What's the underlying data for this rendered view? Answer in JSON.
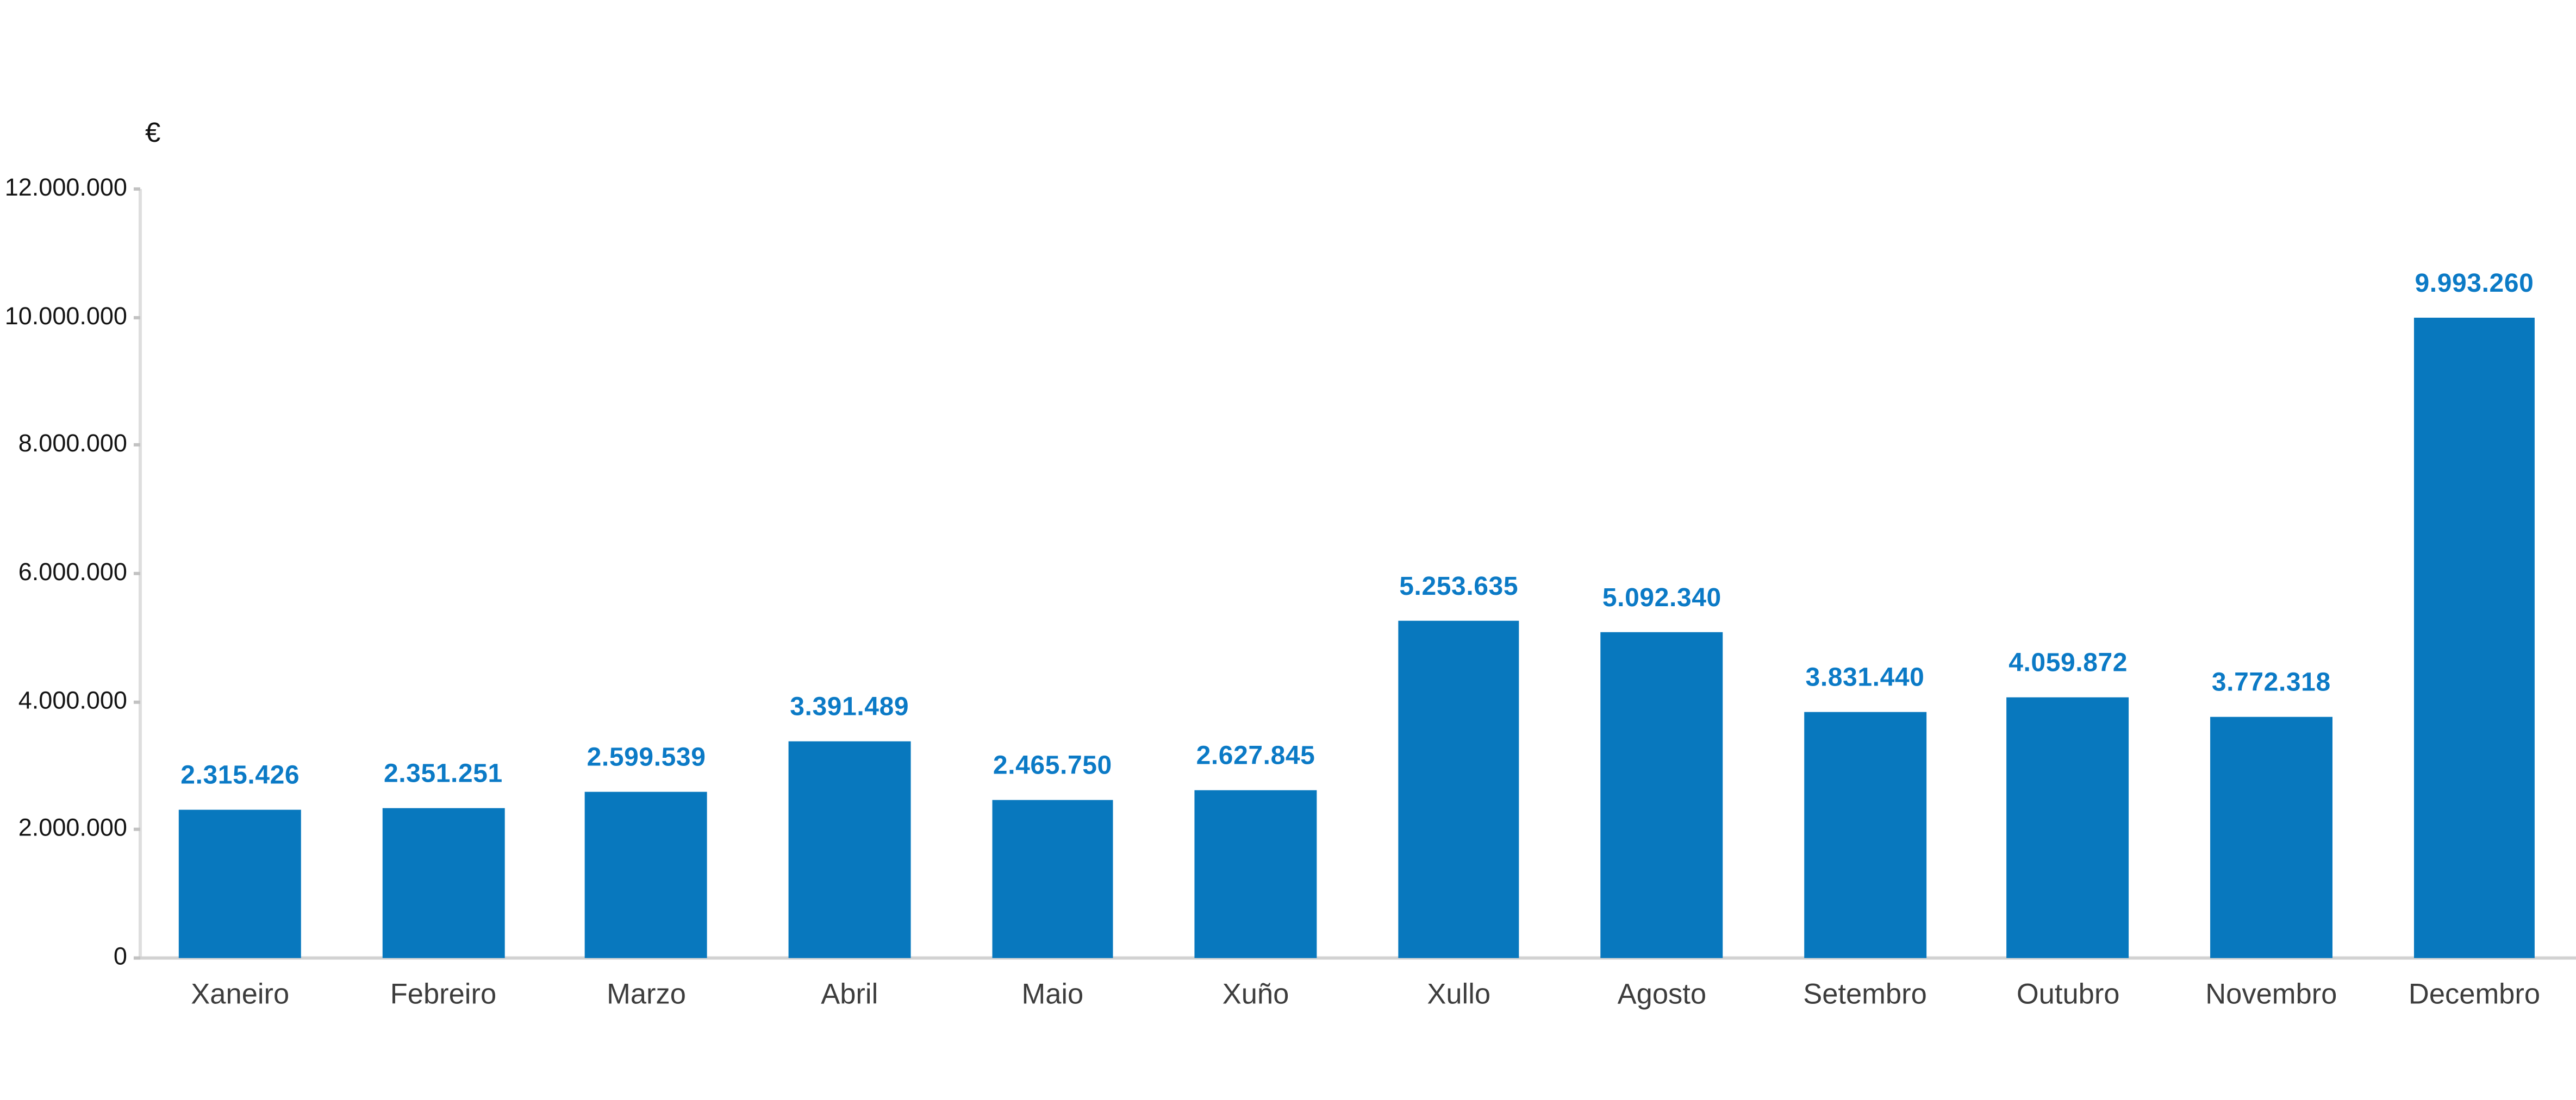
{
  "chart_data": {
    "type": "bar",
    "unit": "€",
    "categories": [
      "Xaneiro",
      "Febreiro",
      "Marzo",
      "Abril",
      "Maio",
      "Xuño",
      "Xullo",
      "Agosto",
      "Setembro",
      "Outubro",
      "Novembro",
      "Decembro"
    ],
    "values": [
      2315426,
      2351251,
      2599539,
      3391489,
      2465750,
      2627845,
      5253635,
      5092340,
      3831440,
      4059872,
      3772318,
      9993260
    ],
    "value_labels": [
      "2.315.426",
      "2.351.251",
      "2.599.539",
      "3.391.489",
      "2.465.750",
      "2.627.845",
      "5.253.635",
      "5.092.340",
      "3.831.440",
      "4.059.872",
      "3.772.318",
      "9.993.260"
    ],
    "y_tick_labels": [
      "12.000.000",
      "10.000.000",
      "8.000.000",
      "6.000.000",
      "4.000.000",
      "2.000.000",
      "0"
    ],
    "ylim": [
      0,
      12000000
    ],
    "y_tick_step": 2000000,
    "grid": "off",
    "legend": "none",
    "colors": {
      "bar": "#0878be",
      "value_label": "#0b7ac6",
      "category_label": "#3d3d3d",
      "y_tick_label": "#141414",
      "axis_line": "#dedede",
      "tick_mark": "#c2c2c2",
      "background": "#ffffff"
    }
  }
}
